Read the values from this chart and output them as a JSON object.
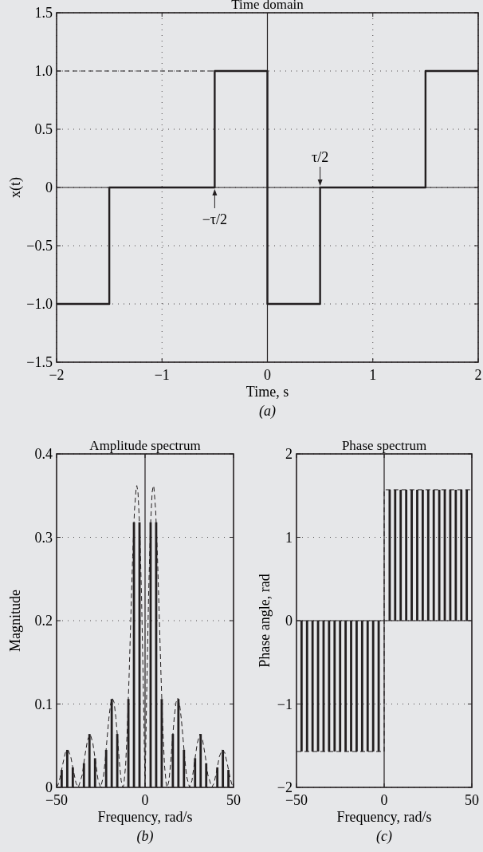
{
  "chart_data": [
    {
      "type": "line",
      "title": "Time domain",
      "xlabel": "Time, s",
      "ylabel": "x(t)",
      "xlim": [
        -2,
        2
      ],
      "ylim": [
        -1.5,
        1.5
      ],
      "xticks": [
        {
          "value": -2,
          "label": "−2"
        },
        {
          "value": -1,
          "label": "−1"
        },
        0,
        1,
        2
      ],
      "yticks": [
        {
          "value": -1.5,
          "label": "−1.5"
        },
        {
          "value": -1,
          "label": "−1.0"
        },
        {
          "value": -0.5,
          "label": "−0.5"
        },
        0,
        0.5,
        {
          "value": 1,
          "label": "1.0"
        },
        1.5
      ],
      "grid": true,
      "series": [
        {
          "color": "#231f20",
          "x": [
            -2,
            -1.5,
            -1.5,
            -0.5,
            -0.5,
            0,
            0,
            0.5,
            0.5,
            1.5,
            1.5,
            2
          ],
          "values": [
            -1,
            -1,
            0,
            0,
            1,
            1,
            -1,
            -1,
            0,
            0,
            1,
            1
          ],
          "line_style": "solid"
        },
        {
          "color": "#231f20",
          "x": [
            -2,
            -0.5
          ],
          "values": [
            1,
            1
          ],
          "line_style": "dashed"
        }
      ],
      "ref_lines": [
        {
          "axis": "y",
          "value": 0
        },
        {
          "axis": "x",
          "value": 0
        }
      ],
      "annotations": [
        {
          "text": "−τ/2",
          "x": -0.5,
          "y": 0
        },
        {
          "text": "τ/2",
          "x": 0.5,
          "y": 0
        },
        "(a)"
      ]
    },
    {
      "type": "bar",
      "title": "Amplitude spectrum",
      "xlabel": "Frequency, rad/s",
      "ylabel": "Magnitude",
      "xlim": [
        -50,
        50
      ],
      "ylim": [
        0,
        0.4
      ],
      "xticks": [
        {
          "value": -50,
          "label": "−50"
        },
        0,
        50
      ],
      "yticks": [
        0,
        0.1,
        0.2,
        0.3,
        0.4
      ],
      "grid": "y",
      "series": [
        {
          "type": "bar",
          "color": "#231f20",
          "x": [
            -47.12,
            -43.98,
            -40.84,
            -37.7,
            -34.56,
            -31.42,
            -28.27,
            -25.13,
            -21.99,
            -18.85,
            -15.71,
            -12.57,
            -9.42,
            -6.28,
            -3.14,
            0,
            3.14,
            6.28,
            9.42,
            12.57,
            15.71,
            18.85,
            21.99,
            25.13,
            28.27,
            31.42,
            34.56,
            37.7,
            40.84,
            43.98,
            47.12
          ],
          "values": [
            0.021,
            0.045,
            0.024,
            0,
            0.029,
            0.064,
            0.035,
            0,
            0.045,
            0.106,
            0.064,
            0,
            0.106,
            0.318,
            0.318,
            0,
            0.318,
            0.318,
            0.106,
            0,
            0.064,
            0.106,
            0.045,
            0,
            0.035,
            0.064,
            0.029,
            0,
            0.024,
            0.045,
            0.021
          ]
        },
        {
          "type": "line",
          "color": "#231f20",
          "line_style": "dashed",
          "x": [
            -50,
            -49,
            -48,
            -46.5,
            -45,
            -43.5,
            -42,
            -40.5,
            -39,
            -37.7,
            -35.5,
            -34,
            -32.5,
            -31,
            -29.5,
            -28,
            -26.5,
            -25.13,
            -23.5,
            -22.5,
            -21.5,
            -20.5,
            -19.5,
            -18.5,
            -17.5,
            -16.5,
            -15.5,
            -14.5,
            -13.5,
            -12.57,
            -12,
            -11,
            -10,
            -9,
            -8,
            -7,
            -6,
            -5,
            -4.66,
            -4,
            -3,
            -2,
            -1,
            0,
            1,
            2,
            3,
            4,
            4.66,
            5,
            6,
            7,
            8,
            9,
            10,
            11,
            12,
            12.57,
            13.5,
            14.5,
            15.5,
            16.5,
            17.5,
            18.5,
            19.5,
            20.5,
            21.5,
            22.5,
            23.5,
            25.13,
            26.5,
            28,
            29.5,
            31,
            32.5,
            34,
            35.5,
            37.7,
            39,
            40.5,
            42,
            43.5,
            45,
            46.5,
            48,
            49,
            50
          ],
          "values": [
            0,
            0.004,
            0.012,
            0.028,
            0.042,
            0.045,
            0.037,
            0.02,
            0.005,
            0,
            0.015,
            0.038,
            0.057,
            0.064,
            0.053,
            0.031,
            0.008,
            0,
            0.013,
            0.033,
            0.058,
            0.082,
            0.1,
            0.107,
            0.102,
            0.084,
            0.058,
            0.03,
            0.008,
            0,
            0.003,
            0.026,
            0.072,
            0.135,
            0.207,
            0.277,
            0.332,
            0.36,
            0.362,
            0.354,
            0.31,
            0.23,
            0.122,
            0,
            0.122,
            0.23,
            0.31,
            0.354,
            0.362,
            0.36,
            0.332,
            0.277,
            0.207,
            0.135,
            0.072,
            0.026,
            0.003,
            0,
            0.008,
            0.03,
            0.058,
            0.084,
            0.102,
            0.107,
            0.1,
            0.082,
            0.058,
            0.033,
            0.013,
            0,
            0.008,
            0.031,
            0.053,
            0.064,
            0.057,
            0.038,
            0.015,
            0,
            0.005,
            0.02,
            0.037,
            0.045,
            0.042,
            0.028,
            0.012,
            0.004,
            0
          ]
        }
      ],
      "ref_lines": [
        {
          "axis": "x",
          "value": 0
        }
      ],
      "annotations": [
        "(b)"
      ]
    },
    {
      "type": "bar",
      "title": "Phase spectrum",
      "xlabel": "Frequency, rad/s",
      "ylabel": "Phase angle, rad",
      "xlim": [
        -50,
        50
      ],
      "ylim": [
        -2,
        2
      ],
      "xticks": [
        {
          "value": -50,
          "label": "−50"
        },
        0,
        50
      ],
      "yticks": [
        {
          "value": -2,
          "label": "−2"
        },
        {
          "value": -1,
          "label": "−1"
        },
        0,
        1,
        2
      ],
      "grid": "y",
      "series": [
        {
          "type": "bar",
          "color": "#231f20",
          "x": [
            -47.12,
            -43.98,
            -40.84,
            -37.7,
            -34.56,
            -31.42,
            -28.27,
            -25.13,
            -21.99,
            -18.85,
            -15.71,
            -12.57,
            -9.42,
            -6.28,
            -3.14,
            3.14,
            6.28,
            9.42,
            12.57,
            15.71,
            18.85,
            21.99,
            25.13,
            28.27,
            31.42,
            34.56,
            37.7,
            40.84,
            43.98,
            47.12
          ],
          "values": [
            -1.57,
            -1.57,
            -1.57,
            -1.57,
            -1.57,
            -1.57,
            -1.57,
            -1.57,
            -1.57,
            -1.57,
            -1.57,
            -1.57,
            -1.57,
            -1.57,
            -1.57,
            1.57,
            1.57,
            1.57,
            1.57,
            1.57,
            1.57,
            1.57,
            1.57,
            1.57,
            1.57,
            1.57,
            1.57,
            1.57,
            1.57,
            1.57
          ]
        },
        {
          "type": "line",
          "color": "#231f20",
          "line_style": "dashed",
          "x": [
            -50,
            0,
            0,
            50
          ],
          "values": [
            -1.57,
            -1.57,
            1.57,
            1.57
          ]
        }
      ],
      "ref_lines": [
        {
          "axis": "x",
          "value": 0
        }
      ],
      "annotations": [
        "(c)"
      ]
    }
  ]
}
